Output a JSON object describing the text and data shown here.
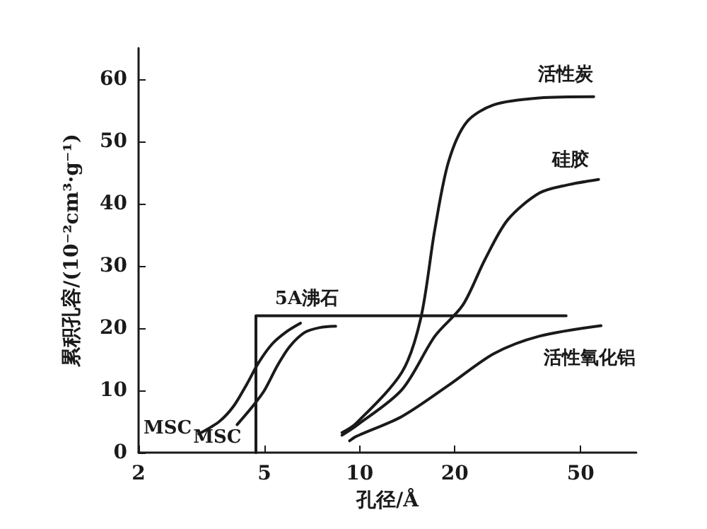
{
  "chart_data": {
    "type": "line",
    "xlabel": "孔径/Å",
    "ylabel": "累积孔容/(10⁻²cm³·g⁻¹)",
    "log": "x",
    "xlim": [
      2,
      75
    ],
    "xticks": [
      2,
      5,
      10,
      20,
      50
    ],
    "ylim": [
      0,
      65
    ],
    "yticks": [
      0,
      10,
      20,
      30,
      40,
      50,
      60
    ],
    "grid": false,
    "legend": false,
    "marker": "none",
    "line_style": "solid",
    "series": [
      {
        "name": "MSC",
        "color": "#1a1a1a",
        "x": [
          3.1,
          3.6,
          4.0,
          4.4,
          4.8,
          5.3,
          5.9,
          6.5
        ],
        "values": [
          3,
          5,
          7.5,
          11,
          14.5,
          17.5,
          19.5,
          20.8
        ]
      },
      {
        "name": "MSC",
        "color": "#1a1a1a",
        "x": [
          4.1,
          4.6,
          5.0,
          5.5,
          6.0,
          6.7,
          7.5,
          8.4
        ],
        "values": [
          4.5,
          7.5,
          10,
          14,
          17,
          19.3,
          20.1,
          20.3
        ]
      },
      {
        "name": "5A沸石",
        "type": "step",
        "color": "#1a1a1a",
        "x": [
          4.7,
          4.7,
          45
        ],
        "values": [
          0,
          22,
          22
        ]
      },
      {
        "name": "活性炭",
        "color": "#1a1a1a",
        "x": [
          8.8,
          9.75,
          13.6,
          15.6,
          17.3,
          19.1,
          21.8,
          26.6,
          37,
          55
        ],
        "values": [
          3.2,
          4.7,
          12.9,
          21.5,
          35.9,
          46.7,
          53.1,
          55.9,
          57,
          57.2
        ]
      },
      {
        "name": "硅胶",
        "color": "#1a1a1a",
        "x": [
          8.8,
          9.75,
          13.6,
          17.3,
          21.2,
          24.9,
          29.4,
          37,
          45.3,
          57
        ],
        "values": [
          2.8,
          4.3,
          10.1,
          18.7,
          23.7,
          31,
          37.4,
          41.7,
          43,
          43.9
        ]
      },
      {
        "name": "活性氧化铝",
        "color": "#1a1a1a",
        "x": [
          9.3,
          9.75,
          13.6,
          19.1,
          26.6,
          37,
          58
        ],
        "values": [
          1.9,
          2.6,
          5.8,
          10.8,
          15.9,
          18.7,
          20.4
        ]
      }
    ]
  }
}
